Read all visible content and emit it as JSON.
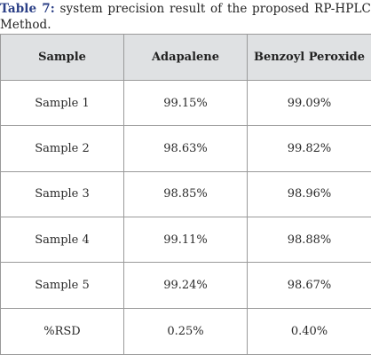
{
  "caption": {
    "label": "Table 7:",
    "text": " system precision result of the proposed RP-HPLC Method."
  },
  "table": {
    "headers": [
      "Sample",
      "Adapalene",
      "Benzoyl Peroxide"
    ],
    "rows": [
      [
        "Sample 1",
        "99.15%",
        "99.09%"
      ],
      [
        "Sample 2",
        "98.63%",
        "99.82%"
      ],
      [
        "Sample 3",
        "98.85%",
        "98.96%"
      ],
      [
        "Sample 4",
        "99.11%",
        "98.88%"
      ],
      [
        "Sample 5",
        "99.24%",
        "98.67%"
      ],
      [
        "%RSD",
        "0.25%",
        "0.40%"
      ]
    ]
  },
  "colors": {
    "caption_label": "#2b3f86",
    "header_background": "#dfe1e3",
    "border": "#9a9a9a"
  }
}
